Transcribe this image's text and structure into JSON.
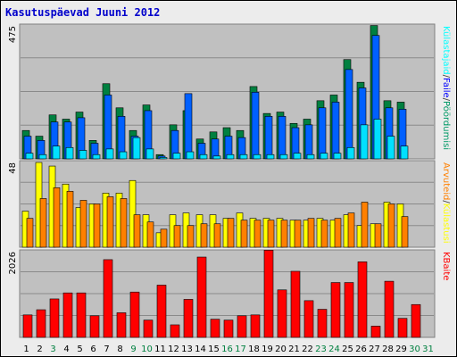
{
  "title": "Kasutuspäevad Juuni 2012",
  "chart_data": [
    {
      "type": "bar",
      "panel": "top",
      "ylabel": "475",
      "ylim": [
        0,
        475
      ],
      "right_labels": [
        "Külastajaid",
        "/",
        "Faile",
        "/",
        "Pöördumisi"
      ],
      "right_label_colors": [
        "#00ffff",
        "#404040",
        "#0000ff",
        "#404040",
        "#009966"
      ],
      "categories": [
        "1",
        "2",
        "3",
        "4",
        "5",
        "6",
        "7",
        "8",
        "9",
        "10",
        "11",
        "12",
        "13",
        "14",
        "15",
        "16",
        "17",
        "18",
        "19",
        "20",
        "21",
        "22",
        "23",
        "24",
        "25",
        "26",
        "27",
        "28",
        "29",
        "30",
        "31"
      ],
      "series": [
        {
          "name": "Pöördumisi",
          "color": "#008040",
          "values": [
            100,
            80,
            155,
            140,
            165,
            65,
            265,
            180,
            100,
            190,
            15,
            120,
            170,
            70,
            95,
            110,
            100,
            255,
            160,
            165,
            125,
            140,
            205,
            225,
            350,
            270,
            470,
            205,
            200,
            0,
            0
          ]
        },
        {
          "name": "Faile",
          "color": "#0060ff",
          "values": [
            80,
            65,
            130,
            130,
            145,
            55,
            225,
            150,
            80,
            170,
            10,
            100,
            230,
            55,
            70,
            80,
            75,
            235,
            150,
            150,
            110,
            120,
            180,
            200,
            315,
            250,
            435,
            180,
            175,
            0,
            0
          ]
        },
        {
          "name": "Külastajaid",
          "color": "#00e0ff",
          "values": [
            20,
            15,
            45,
            40,
            30,
            15,
            35,
            25,
            75,
            35,
            5,
            20,
            25,
            15,
            10,
            15,
            15,
            15,
            15,
            15,
            20,
            15,
            20,
            20,
            40,
            120,
            140,
            80,
            45,
            0,
            0
          ]
        }
      ]
    },
    {
      "type": "bar",
      "panel": "middle",
      "ylabel": "48",
      "ylim": [
        0,
        48
      ],
      "right_labels": [
        "Arvuteid",
        "/",
        "Külastusi"
      ],
      "right_label_colors": [
        "#ff8000",
        "#404040",
        "#ffff00"
      ],
      "categories": [
        "1",
        "2",
        "3",
        "4",
        "5",
        "6",
        "7",
        "8",
        "9",
        "10",
        "11",
        "12",
        "13",
        "14",
        "15",
        "16",
        "17",
        "18",
        "19",
        "20",
        "21",
        "22",
        "23",
        "24",
        "25",
        "26",
        "27",
        "28",
        "29",
        "30",
        "31"
      ],
      "series": [
        {
          "name": "Külastusi",
          "color": "#ffff00",
          "values": [
            20,
            47,
            45,
            35,
            22,
            24,
            30,
            30,
            37,
            18,
            8,
            18,
            19,
            18,
            18,
            16,
            19,
            16,
            16,
            16,
            15,
            15,
            16,
            15,
            18,
            12,
            13,
            25,
            24,
            0,
            0
          ]
        },
        {
          "name": "Arvuteid",
          "color": "#ff8000",
          "values": [
            16,
            27,
            33,
            31,
            26,
            24,
            28,
            27,
            18,
            14,
            10,
            12,
            12,
            13,
            13,
            16,
            15,
            15,
            15,
            15,
            15,
            16,
            15,
            16,
            19,
            25,
            13,
            24,
            17,
            0,
            0
          ]
        }
      ]
    },
    {
      "type": "bar",
      "panel": "bottom",
      "ylabel": "2026",
      "ylim": [
        0,
        2026
      ],
      "right_labels": [
        "KBaite"
      ],
      "right_label_colors": [
        "#ff0000"
      ],
      "categories": [
        "1",
        "2",
        "3",
        "4",
        "5",
        "6",
        "7",
        "8",
        "9",
        "10",
        "11",
        "12",
        "13",
        "14",
        "15",
        "16",
        "17",
        "18",
        "19",
        "20",
        "21",
        "22",
        "23",
        "24",
        "25",
        "26",
        "27",
        "28",
        "29",
        "30",
        "31"
      ],
      "series": [
        {
          "name": "KBaite",
          "color": "#ff0000",
          "values": [
            520,
            640,
            890,
            1030,
            1030,
            500,
            1800,
            570,
            1050,
            400,
            1210,
            290,
            880,
            1860,
            420,
            400,
            500,
            520,
            2020,
            1100,
            1530,
            850,
            650,
            1270,
            1270,
            1750,
            260,
            1300,
            440,
            760,
            0
          ]
        }
      ]
    }
  ],
  "day_labels": [
    {
      "text": "1",
      "color": "#000000"
    },
    {
      "text": "2",
      "color": "#000000"
    },
    {
      "text": "3",
      "color": "#008040"
    },
    {
      "text": "4",
      "color": "#000000"
    },
    {
      "text": "5",
      "color": "#000000"
    },
    {
      "text": "6",
      "color": "#000000"
    },
    {
      "text": "7",
      "color": "#000000"
    },
    {
      "text": "8",
      "color": "#000000"
    },
    {
      "text": "9",
      "color": "#008040"
    },
    {
      "text": "10",
      "color": "#008040"
    },
    {
      "text": "11",
      "color": "#000000"
    },
    {
      "text": "12",
      "color": "#000000"
    },
    {
      "text": "13",
      "color": "#000000"
    },
    {
      "text": "14",
      "color": "#000000"
    },
    {
      "text": "15",
      "color": "#000000"
    },
    {
      "text": "16",
      "color": "#008040"
    },
    {
      "text": "17",
      "color": "#008040"
    },
    {
      "text": "18",
      "color": "#000000"
    },
    {
      "text": "19",
      "color": "#000000"
    },
    {
      "text": "20",
      "color": "#000000"
    },
    {
      "text": "21",
      "color": "#000000"
    },
    {
      "text": "22",
      "color": "#000000"
    },
    {
      "text": "23",
      "color": "#008040"
    },
    {
      "text": "24",
      "color": "#008040"
    },
    {
      "text": "25",
      "color": "#000000"
    },
    {
      "text": "26",
      "color": "#000000"
    },
    {
      "text": "27",
      "color": "#000000"
    },
    {
      "text": "28",
      "color": "#000000"
    },
    {
      "text": "29",
      "color": "#000000"
    },
    {
      "text": "30",
      "color": "#008040"
    },
    {
      "text": "31",
      "color": "#008040"
    }
  ],
  "colors": {
    "plot_bg": "#c0c0c0",
    "frame_bg": "#ececec",
    "title": "#0000cc"
  }
}
